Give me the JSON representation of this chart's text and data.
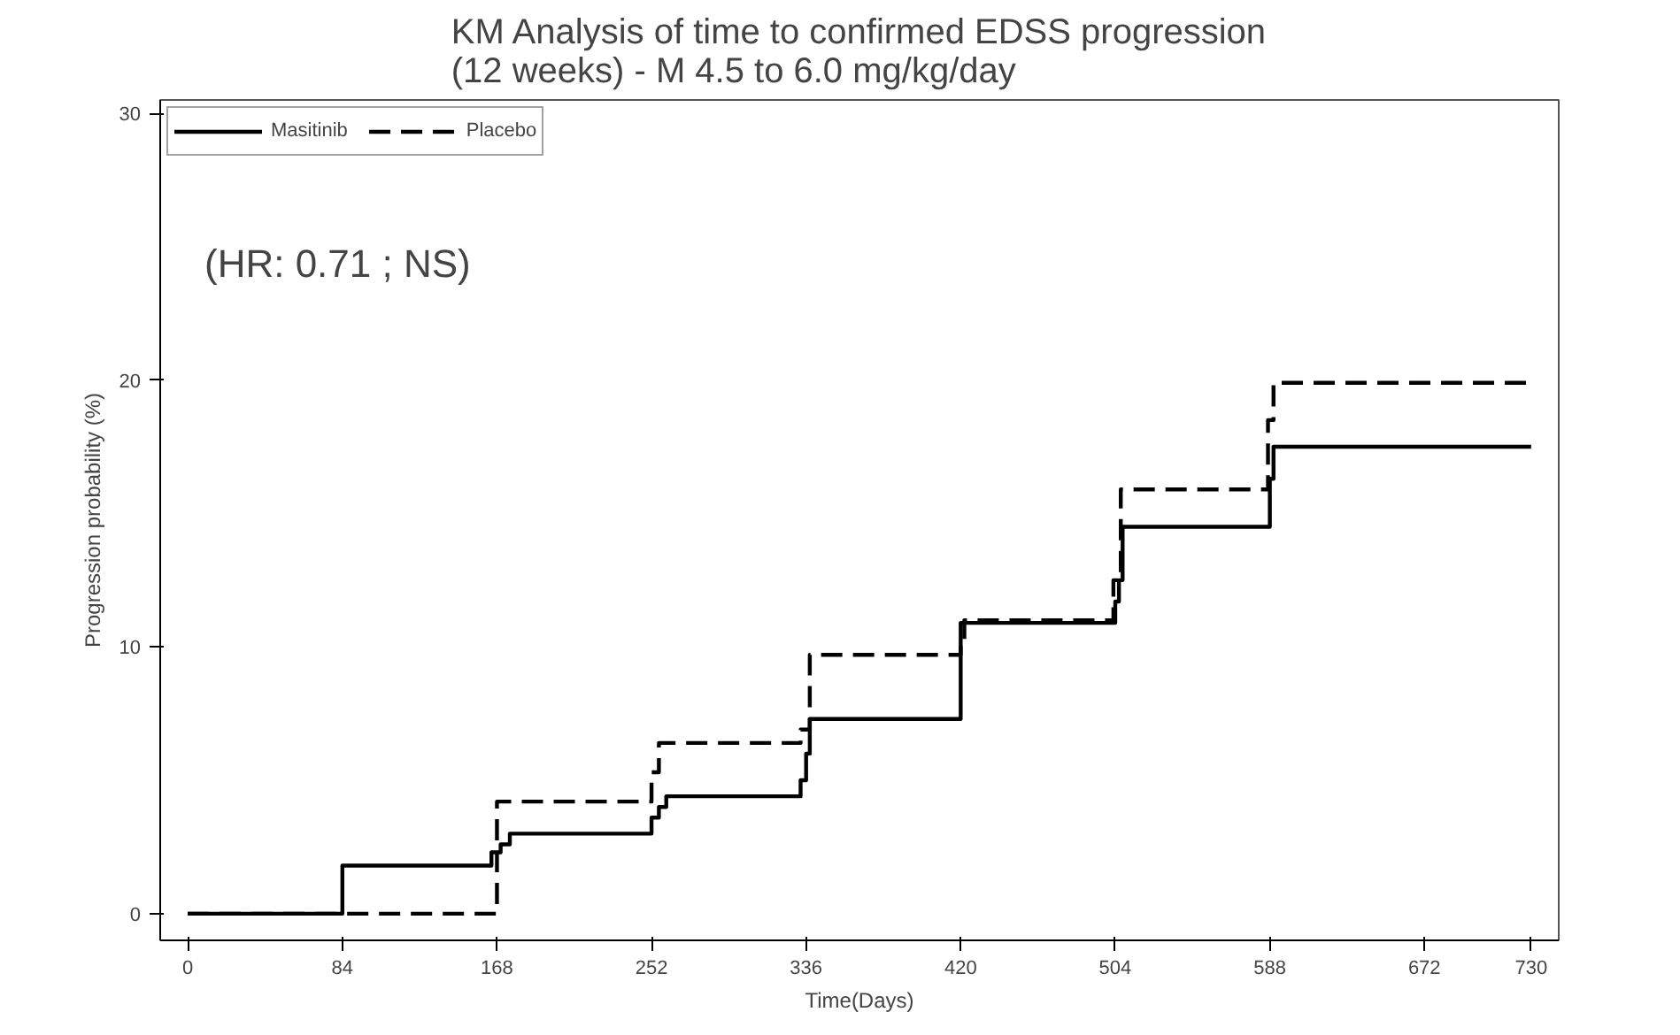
{
  "chart_data": {
    "type": "step",
    "title": "KM Analysis of time to confirmed EDSS progression\n(12 weeks) - M 4.5 to 6.0 mg/kg/day",
    "xlabel": "Time(Days)",
    "ylabel": "Progression probability (%)",
    "annotations": [
      "(HR: 0.71 ; NS)"
    ],
    "series": [
      {
        "name": "Masitinib",
        "color": "#000000",
        "line_style": "solid",
        "x": [
          0,
          84,
          165,
          170,
          175,
          252,
          256,
          260,
          333,
          336,
          338,
          420,
          504,
          506,
          508,
          588,
          590,
          730
        ],
        "values": [
          0,
          1.8,
          2.3,
          2.6,
          3.0,
          3.6,
          4.0,
          4.4,
          5.0,
          6.0,
          7.3,
          10.9,
          11.7,
          12.5,
          14.5,
          16.3,
          17.5,
          17.5
        ]
      },
      {
        "name": "Placebo",
        "color": "#000000",
        "line_style": "dashed",
        "x": [
          0,
          168,
          252,
          256,
          333,
          338,
          420,
          422,
          503,
          507,
          587,
          590,
          730
        ],
        "values": [
          0,
          4.2,
          5.3,
          6.4,
          6.9,
          9.7,
          10.2,
          11.0,
          12.5,
          15.9,
          18.5,
          19.9,
          19.9
        ]
      }
    ],
    "xlim": [
      -15,
      745
    ],
    "ylim": [
      -1,
      30.5
    ],
    "xticks": [
      0,
      84,
      168,
      252,
      336,
      420,
      504,
      588,
      672,
      730
    ],
    "yticks": [
      0,
      10,
      20,
      30
    ],
    "grid": false,
    "legend": "top left"
  }
}
